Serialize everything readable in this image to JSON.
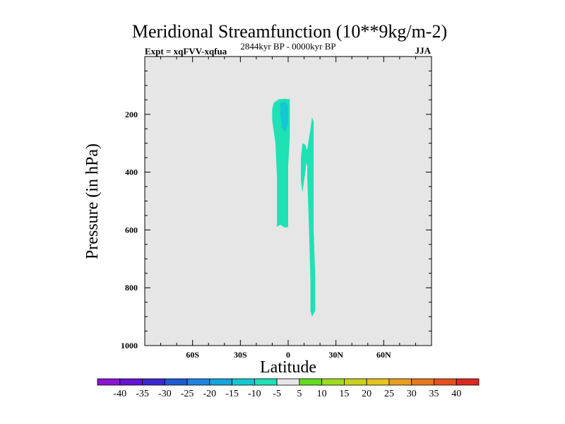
{
  "chart_data": {
    "type": "contour",
    "title": "Meridional Streamfunction (10**9kg/m-2)",
    "subtitle_left": "Expt = xqFVV-xqfua",
    "subtitle_center": "2844kyr BP - 0000kyr BP",
    "subtitle_right": "JJA",
    "xlabel": "Latitude",
    "ylabel": "Pressure (in hPa)",
    "xlim": [
      -90,
      90
    ],
    "ylim": [
      1000,
      0
    ],
    "x_ticks": [
      {
        "value": -60,
        "label": "60S"
      },
      {
        "value": -30,
        "label": "30S"
      },
      {
        "value": 0,
        "label": "0"
      },
      {
        "value": 30,
        "label": "30N"
      },
      {
        "value": 60,
        "label": "60N"
      }
    ],
    "y_ticks": [
      {
        "value": 200,
        "label": "200"
      },
      {
        "value": 400,
        "label": "400"
      },
      {
        "value": 600,
        "label": "600"
      },
      {
        "value": 800,
        "label": "800"
      },
      {
        "value": 1000,
        "label": "1000"
      }
    ],
    "background_color": "#e6e6e6",
    "colorbar": {
      "levels": [
        "-40",
        "-35",
        "-30",
        "-25",
        "-20",
        "-15",
        "-10",
        "-5",
        "5",
        "10",
        "15",
        "20",
        "25",
        "30",
        "35",
        "40"
      ],
      "colors": [
        "#8c14d2",
        "#6414d2",
        "#3c28d2",
        "#1e5ad2",
        "#1e82e1",
        "#14a5dc",
        "#14c8d2",
        "#1ee1b4",
        "#e6e6e6",
        "#64dc1e",
        "#a0dc1e",
        "#c8d21e",
        "#e6c31e",
        "#e6a01e",
        "#e6781e",
        "#e6501e",
        "#dc281e"
      ]
    },
    "regions": [
      {
        "name": "negative-cell-band",
        "level": "-10 to -5",
        "color": "#1ee1b4",
        "points": [
          [
            -10,
            182
          ],
          [
            -9,
            160
          ],
          [
            -6,
            148
          ],
          [
            -2,
            146
          ],
          [
            1,
            148
          ],
          [
            1,
            280
          ],
          [
            0,
            380
          ],
          [
            0,
            480
          ],
          [
            0,
            590
          ],
          [
            -2,
            592
          ],
          [
            -5,
            582
          ],
          [
            -7,
            590
          ],
          [
            -7,
            560
          ],
          [
            -7,
            420
          ],
          [
            -8,
            300
          ],
          [
            -10,
            220
          ]
        ]
      },
      {
        "name": "negative-core",
        "level": "-15 to -10",
        "color": "#14c8d2",
        "points": [
          [
            -5,
            160
          ],
          [
            -2,
            156
          ],
          [
            0,
            170
          ],
          [
            0,
            230
          ],
          [
            -2,
            262
          ],
          [
            -4,
            245
          ],
          [
            -5,
            200
          ]
        ]
      },
      {
        "name": "small-lobe",
        "level": "-10 to -5",
        "color": "#1ee1b4",
        "points": [
          [
            9,
            300
          ],
          [
            11,
            306
          ],
          [
            12,
            330
          ],
          [
            11,
            390
          ],
          [
            9,
            470
          ],
          [
            8,
            430
          ],
          [
            8,
            350
          ]
        ]
      },
      {
        "name": "tall-column",
        "level": "-10 to -5",
        "color": "#1ee1b4",
        "points": [
          [
            15,
            210
          ],
          [
            16,
            225
          ],
          [
            16,
            300
          ],
          [
            16,
            420
          ],
          [
            16,
            600
          ],
          [
            17,
            760
          ],
          [
            17,
            880
          ],
          [
            15,
            900
          ],
          [
            14,
            880
          ],
          [
            14,
            780
          ],
          [
            13,
            580
          ],
          [
            12,
            420
          ],
          [
            12,
            380
          ],
          [
            10,
            340
          ],
          [
            12,
            320
          ],
          [
            14,
            250
          ]
        ]
      }
    ]
  }
}
